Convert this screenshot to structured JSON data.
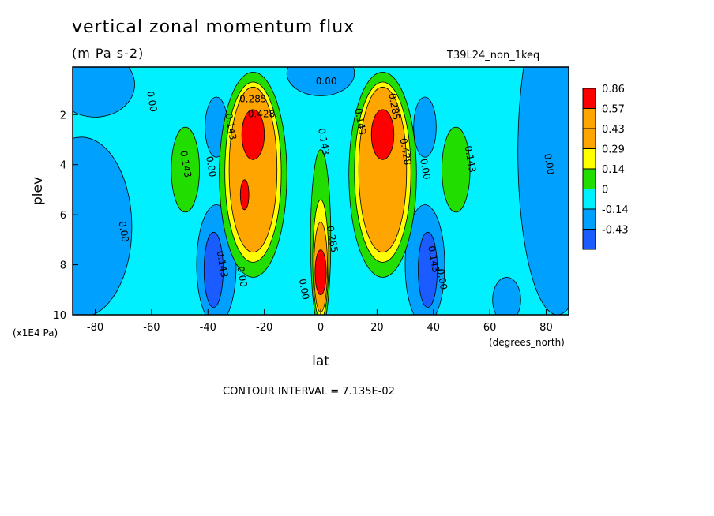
{
  "title": "vertical zonal momentum flux",
  "subtitle": "(m Pa s-2)",
  "run_label": "T39L24_non_1keq",
  "footer": "CONTOUR INTERVAL = 7.135E-02",
  "colors": {
    "-0.43": "#1a5cff",
    "-0.14": "#00a0ff",
    "0": "#00f0ff",
    "0.14": "#22dd00",
    "0.29": "#ffff00",
    "0.43": "#ffa500",
    "0.57": "#ffa500",
    "0.86": "#ff0000"
  },
  "chart_data": {
    "type": "heatmap",
    "title": "vertical zonal momentum flux",
    "subtitle": "(m Pa s-2)",
    "xlabel": "lat",
    "ylabel": "plev",
    "x_unit": "(degrees_north)",
    "y_unit": "(x1E4 Pa)",
    "xlim": [
      -88,
      88
    ],
    "ylim": [
      10,
      0.1
    ],
    "x_ticks": [
      -80,
      -60,
      -40,
      -20,
      0,
      20,
      40,
      60,
      80
    ],
    "x_tick_labels": [
      "-80",
      "-60",
      "-40",
      "-20",
      "0",
      "20",
      "40",
      "60",
      "80"
    ],
    "y_ticks": [
      2,
      4,
      6,
      8,
      10
    ],
    "y_tick_labels": [
      "2",
      "4",
      "6",
      "8",
      "10"
    ],
    "contour_interval": "7.135E-02",
    "legend": {
      "position": "right",
      "levels": [
        "0.86",
        "0.57",
        "0.43",
        "0.29",
        "0.14",
        "0",
        "-0.14",
        "-0.43"
      ],
      "colors": [
        "#ff0000",
        "#ffa500",
        "#ffa500",
        "#ffff00",
        "#22dd00",
        "#00f0ff",
        "#00a0ff",
        "#1a5cff"
      ]
    },
    "features": [
      {
        "lat": -24,
        "plev": 2.8,
        "value": 0.86
      },
      {
        "lat": 22,
        "plev": 2.8,
        "value": 0.86
      },
      {
        "lat": 0,
        "plev": 8.0,
        "value": 0.86
      },
      {
        "lat": -48,
        "plev": 4.0,
        "value": 0.2
      },
      {
        "lat": 48,
        "plev": 4.0,
        "value": 0.2
      },
      {
        "lat": -38,
        "plev": 8.0,
        "value": -0.3
      },
      {
        "lat": 38,
        "plev": 8.0,
        "value": -0.3
      }
    ],
    "contour_labels": [
      {
        "text": "0.00",
        "lat": -61,
        "plev": 1.5
      },
      {
        "text": "0.00",
        "lat": 2,
        "plev": 0.8
      },
      {
        "text": "0.285",
        "lat": -24,
        "plev": 1.5
      },
      {
        "text": "0.143",
        "lat": -33,
        "plev": 2.5
      },
      {
        "text": "0.428",
        "lat": -21,
        "plev": 2.1
      },
      {
        "text": "0.143",
        "lat": -49,
        "plev": 4.0
      },
      {
        "text": "0.00",
        "lat": -40,
        "plev": 4.1
      },
      {
        "text": "0.143",
        "lat": 0,
        "plev": 3.1
      },
      {
        "text": "0.143",
        "lat": 13,
        "plev": 2.3
      },
      {
        "text": "0.285",
        "lat": 25,
        "plev": 1.7
      },
      {
        "text": "0.428",
        "lat": 29,
        "plev": 3.5
      },
      {
        "text": "0.00",
        "lat": 36,
        "plev": 4.2
      },
      {
        "text": "0.143",
        "lat": 52,
        "plev": 3.8
      },
      {
        "text": "0.00",
        "lat": 80,
        "plev": 4.0
      },
      {
        "text": "0.00",
        "lat": -71,
        "plev": 6.7
      },
      {
        "text": "0.143",
        "lat": -36,
        "plev": 8.0
      },
      {
        "text": "0.00",
        "lat": -29,
        "plev": 8.5
      },
      {
        "text": "0.00",
        "lat": -7,
        "plev": 9.0
      },
      {
        "text": "0.285",
        "lat": 3,
        "plev": 7.0
      },
      {
        "text": "0.143",
        "lat": 39,
        "plev": 7.8
      },
      {
        "text": "0.00",
        "lat": 42,
        "plev": 8.6
      }
    ]
  }
}
